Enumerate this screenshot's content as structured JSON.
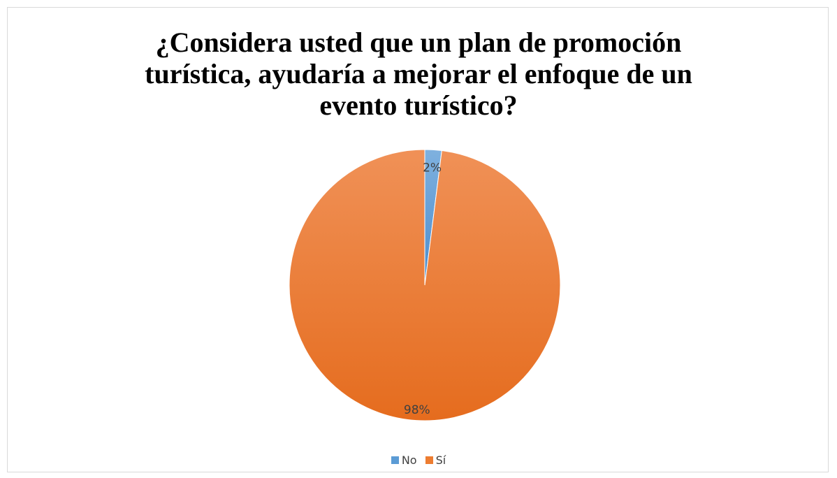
{
  "chart_data": {
    "type": "pie",
    "title": "¿Considera usted que un plan de promoción turística, ayudaría a mejorar el enfoque de un evento turístico?",
    "title_lines": [
      "¿Considera usted que un plan de promoción",
      "turística, ayudaría a mejorar el enfoque de un",
      "evento turístico?"
    ],
    "categories": [
      "No",
      "Sí"
    ],
    "values": [
      2,
      98
    ],
    "data_labels": [
      "2%",
      "98%"
    ],
    "colors": [
      "#5b9bd5",
      "#ed7d31"
    ],
    "legend_position": "bottom"
  }
}
